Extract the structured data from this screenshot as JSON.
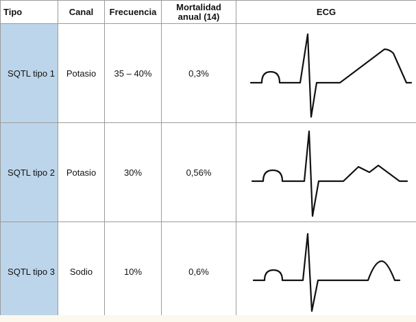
{
  "headers": {
    "tipo": "Tipo",
    "canal": "Canal",
    "frecuencia": "Frecuencia",
    "mortalidad_line1": "Mortalidad",
    "mortalidad_line2": "anual (14)",
    "ecg": "ECG"
  },
  "rows": [
    {
      "tipo": "SQTL tipo 1",
      "canal": "Potasio",
      "frecuencia": "35 – 40%",
      "mortalidad": "0,3%",
      "ecg_t_wave": "broad-asymmetric-peaked"
    },
    {
      "tipo": "SQTL tipo 2",
      "canal": "Potasio",
      "frecuencia": "30%",
      "mortalidad": "0,56%",
      "ecg_t_wave": "low-notched"
    },
    {
      "tipo": "SQTL tipo 3",
      "canal": "Sodio",
      "frecuencia": "10%",
      "mortalidad": "0,6%",
      "ecg_t_wave": "narrow-peaked-late"
    }
  ],
  "colors": {
    "tipo_column_bg": "#bdd5ea",
    "grid_line": "#9a9a9a",
    "ecg_trace": "#111111"
  }
}
